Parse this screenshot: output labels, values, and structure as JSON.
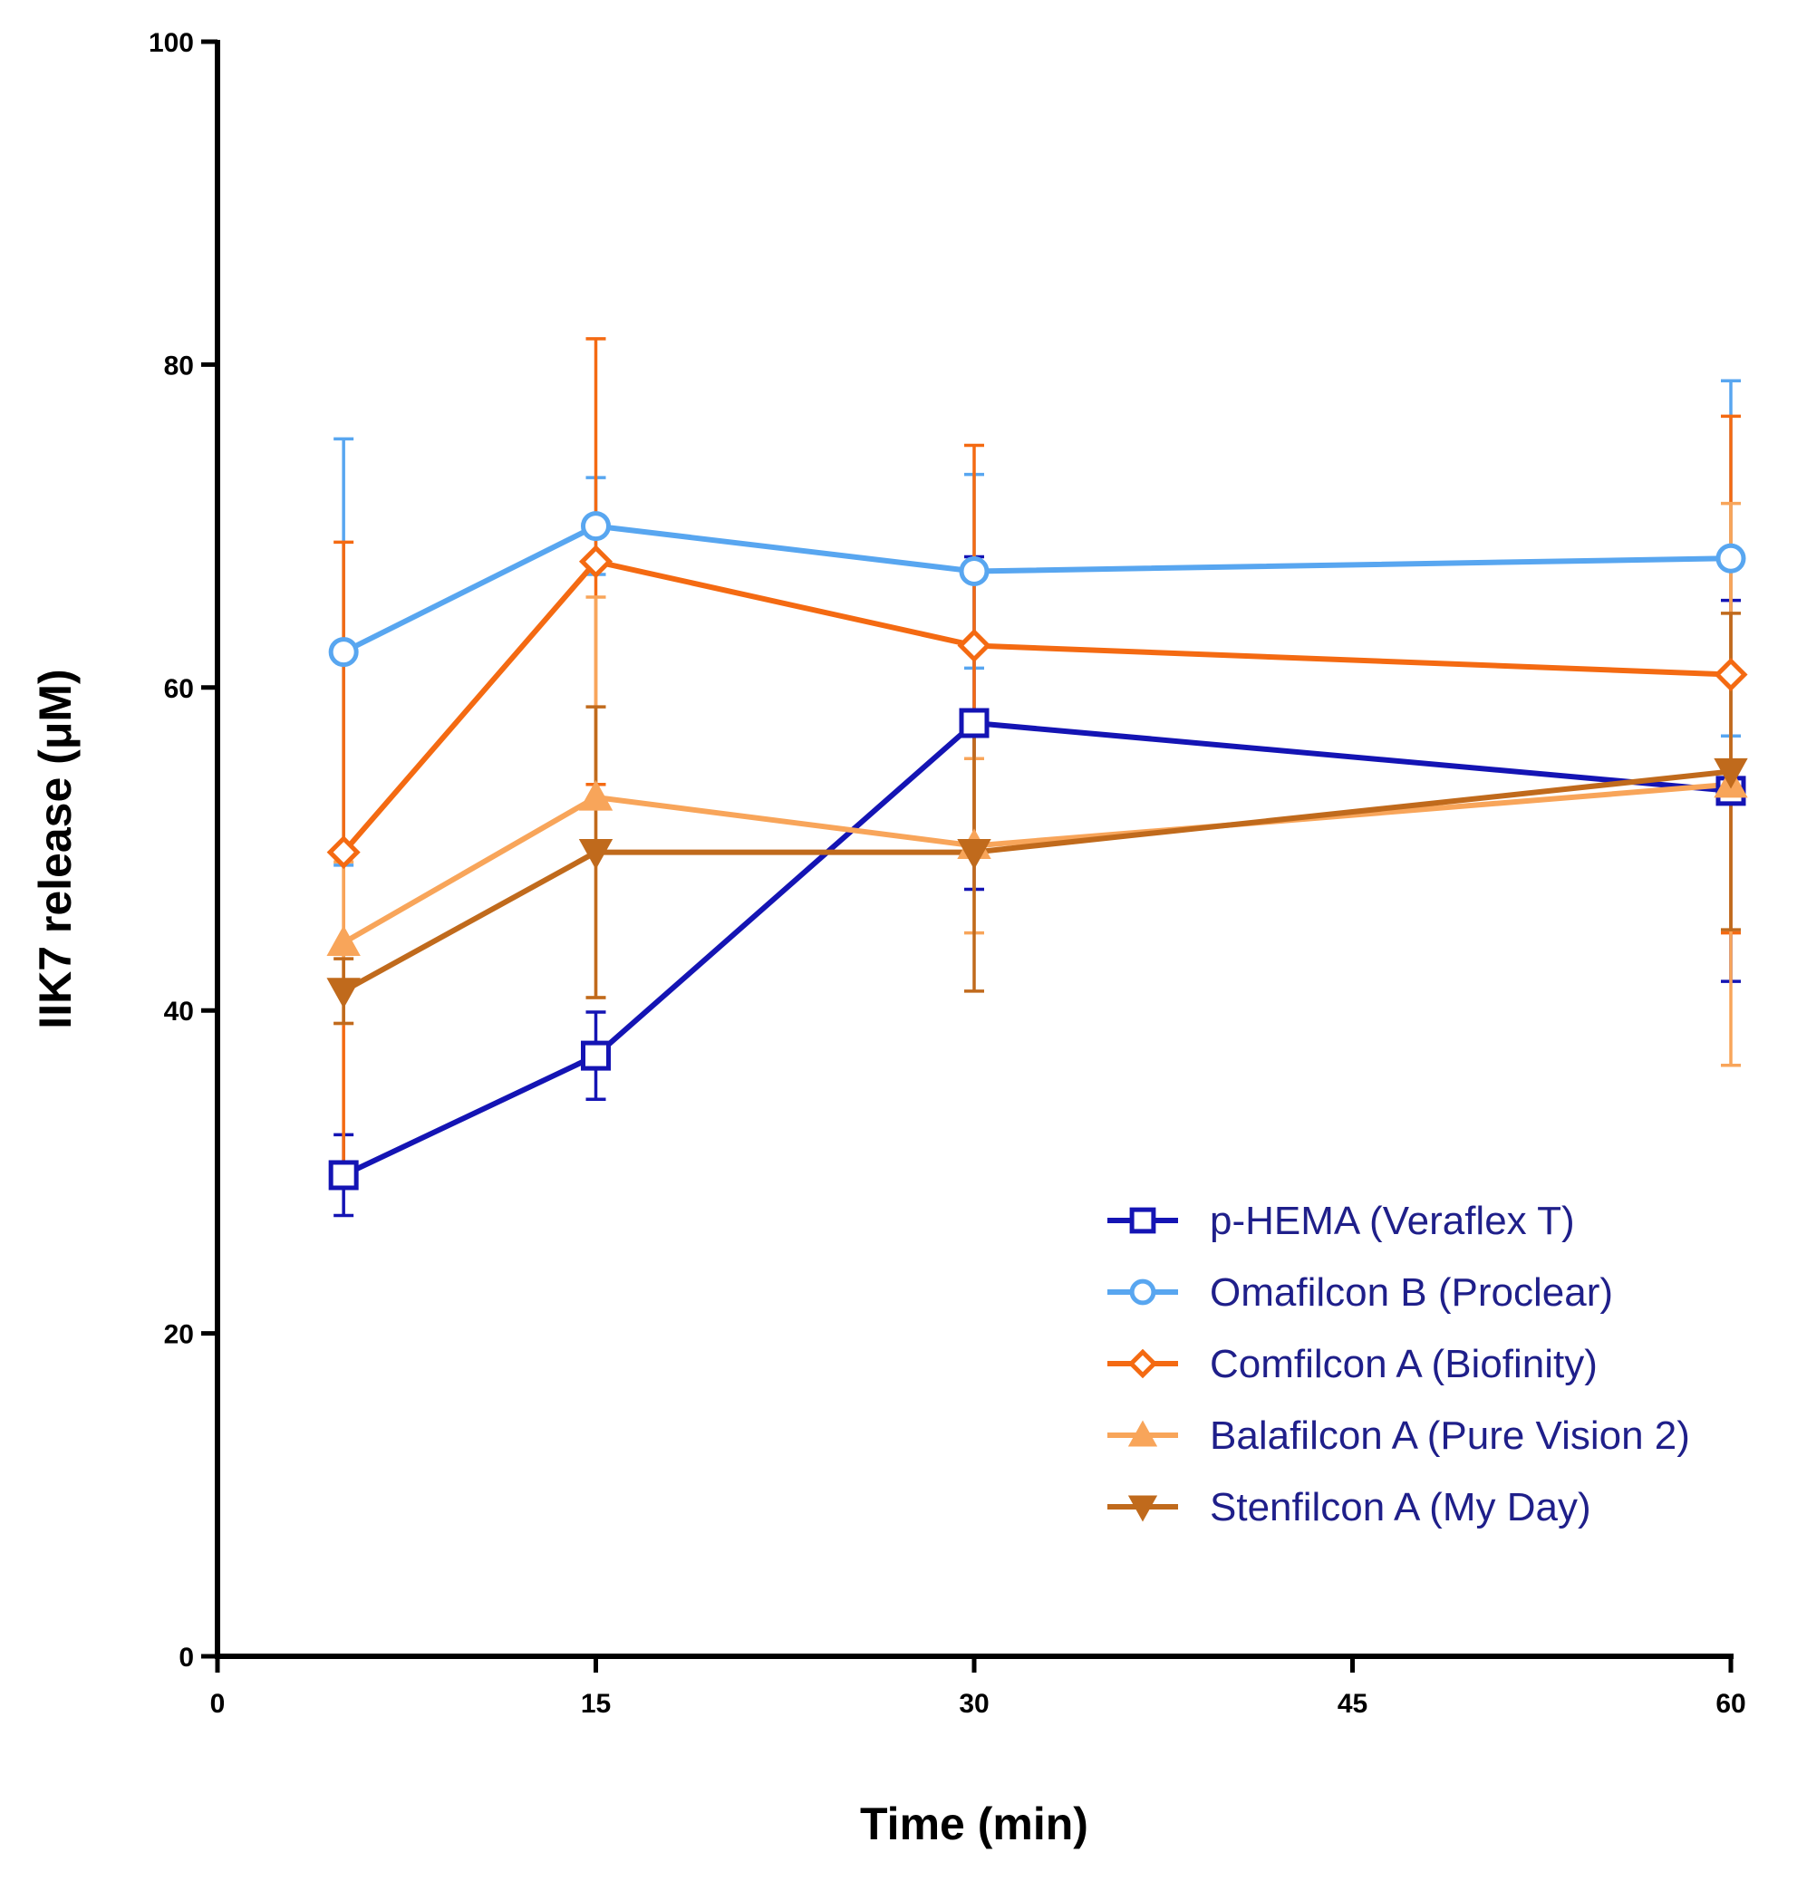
{
  "chart_data": {
    "type": "line",
    "title": "",
    "xlabel": "Time (min)",
    "ylabel": "IIK7 release (μM)",
    "xlim": [
      0,
      60
    ],
    "ylim": [
      0,
      100
    ],
    "xticks": [
      "0",
      "15",
      "30",
      "45",
      "60"
    ],
    "yticks": [
      "0",
      "20",
      "40",
      "60",
      "80",
      "100"
    ],
    "x": [
      5,
      15,
      30,
      60
    ],
    "legend_position": "lower-right",
    "series": [
      {
        "name": "p-HEMA (Veraflex T)",
        "color": "#1414b4",
        "marker": "square",
        "values": [
          29.8,
          37.2,
          57.8,
          53.6
        ],
        "errors": [
          2.5,
          2.7,
          10.3,
          11.8
        ]
      },
      {
        "name": "Omafilcon B (Proclear)",
        "color": "#58a6f0",
        "marker": "circle",
        "values": [
          62.2,
          70.0,
          67.2,
          68.0
        ],
        "errors": [
          13.2,
          3.0,
          6.0,
          11.0
        ]
      },
      {
        "name": "Comfilcon A (Biofinity)",
        "color": "#f46a12",
        "marker": "diamond",
        "values": [
          49.8,
          67.8,
          62.6,
          60.8
        ],
        "errors": [
          19.2,
          13.8,
          12.4,
          16.0
        ]
      },
      {
        "name": "Balafilcon A (Pure Vision 2)",
        "color": "#f8a55a",
        "marker": "triangle-up",
        "values": [
          44.2,
          53.2,
          50.2,
          54.0
        ],
        "errors": [
          5.0,
          12.4,
          5.4,
          17.4
        ]
      },
      {
        "name": "Stenfilcon A (My Day)",
        "color": "#c06a1c",
        "marker": "triangle-down",
        "values": [
          41.2,
          49.8,
          49.8,
          54.8
        ],
        "errors": [
          2.0,
          9.0,
          8.6,
          9.8
        ]
      }
    ]
  }
}
